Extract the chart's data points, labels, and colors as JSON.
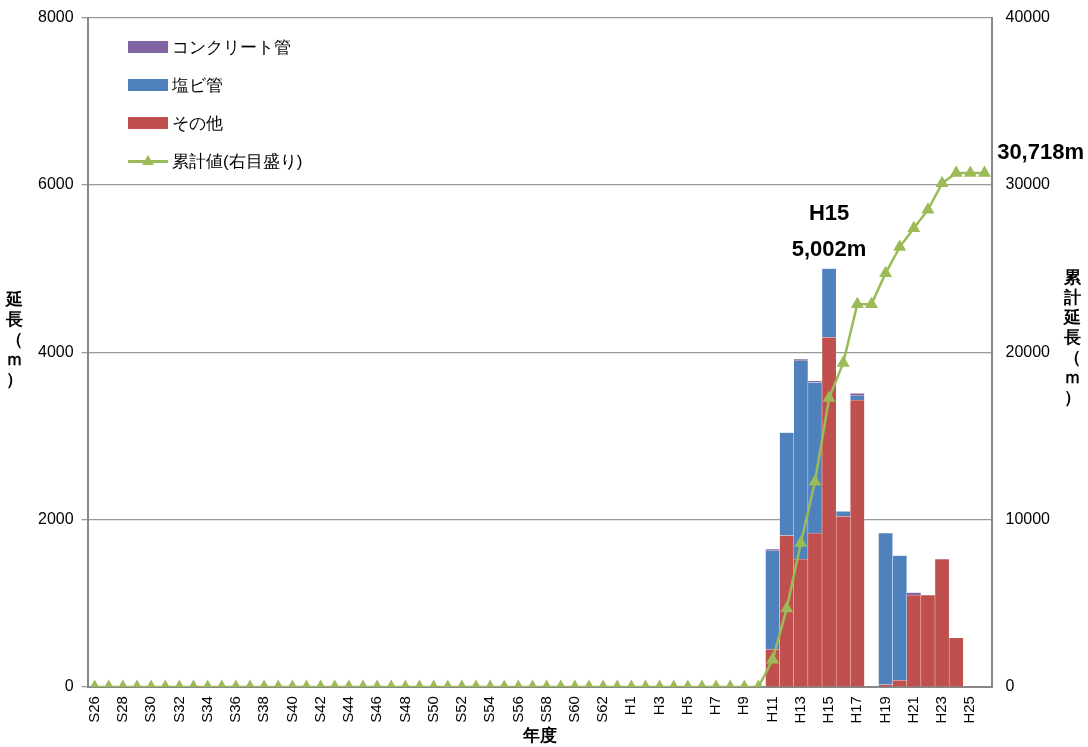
{
  "chart_data": {
    "type": "bar",
    "stacked": true,
    "xlabel": "年度",
    "ylabel": "延長（ｍ）",
    "y2label": "累計延長（ｍ）",
    "categories": [
      "S26",
      null,
      "S28",
      null,
      "S30",
      null,
      "S32",
      null,
      "S34",
      null,
      "S36",
      null,
      "S38",
      null,
      "S40",
      null,
      "S42",
      null,
      "S44",
      null,
      "S46",
      null,
      "S48",
      null,
      "S50",
      null,
      "S52",
      null,
      "S54",
      null,
      "S56",
      null,
      "S58",
      null,
      "S60",
      null,
      "S62",
      null,
      "H1",
      null,
      "H3",
      null,
      "H5",
      null,
      "H7",
      null,
      "H9",
      null,
      "H11",
      null,
      "H13",
      null,
      "H15",
      null,
      "H17",
      null,
      "H19",
      null,
      "H21",
      null,
      "H23",
      null,
      "H25",
      null
    ],
    "series": [
      {
        "name": "その他",
        "color": "#c0504d",
        "values": [
          0,
          0,
          0,
          0,
          0,
          0,
          0,
          0,
          0,
          0,
          0,
          0,
          0,
          0,
          0,
          0,
          0,
          0,
          0,
          0,
          0,
          0,
          0,
          0,
          0,
          0,
          0,
          0,
          0,
          0,
          0,
          0,
          0,
          0,
          0,
          0,
          0,
          0,
          0,
          0,
          0,
          0,
          0,
          0,
          0,
          0,
          0,
          0,
          450,
          1810,
          1530,
          1840,
          4180,
          2040,
          3430,
          0,
          30,
          80,
          1100,
          1100,
          1530,
          590,
          0,
          0
        ]
      },
      {
        "name": "塩ビ管",
        "color": "#4f81bd",
        "values": [
          0,
          0,
          0,
          0,
          0,
          0,
          0,
          0,
          0,
          0,
          0,
          0,
          0,
          0,
          0,
          0,
          0,
          0,
          0,
          0,
          0,
          0,
          0,
          0,
          0,
          0,
          0,
          0,
          0,
          0,
          0,
          0,
          0,
          0,
          0,
          0,
          0,
          0,
          0,
          0,
          0,
          0,
          0,
          0,
          0,
          0,
          0,
          0,
          1180,
          1230,
          2370,
          1800,
          822,
          60,
          50,
          0,
          1810,
          1490,
          0,
          0,
          0,
          0,
          0,
          0
        ]
      },
      {
        "name": "コンクリート管",
        "color": "#8064a2",
        "values": [
          0,
          0,
          0,
          0,
          0,
          0,
          0,
          0,
          0,
          0,
          0,
          0,
          0,
          0,
          0,
          0,
          0,
          0,
          0,
          0,
          0,
          0,
          0,
          0,
          0,
          0,
          0,
          0,
          0,
          0,
          0,
          0,
          0,
          0,
          0,
          0,
          0,
          0,
          0,
          0,
          0,
          0,
          0,
          0,
          0,
          0,
          0,
          0,
          20,
          0,
          20,
          20,
          0,
          0,
          30,
          0,
          0,
          0,
          30,
          0,
          0,
          0,
          0,
          0
        ]
      },
      {
        "name": "累計値(右目盛り)",
        "type": "line",
        "axis": "y2",
        "color": "#9bbb59",
        "marker": "triangle",
        "values": [
          0,
          0,
          0,
          0,
          0,
          0,
          0,
          0,
          0,
          0,
          0,
          0,
          0,
          0,
          0,
          0,
          0,
          0,
          0,
          0,
          0,
          0,
          0,
          0,
          0,
          0,
          0,
          0,
          0,
          0,
          0,
          0,
          0,
          0,
          0,
          0,
          0,
          0,
          0,
          0,
          0,
          0,
          0,
          0,
          0,
          0,
          0,
          0,
          1640,
          4690,
          8610,
          12270,
          17270,
          19370,
          22880,
          22880,
          24720,
          26290,
          27420,
          28520,
          30100,
          30718,
          30718,
          30718
        ]
      }
    ],
    "ylim": [
      0,
      8000
    ],
    "yticks": [
      0,
      2000,
      4000,
      6000,
      8000
    ],
    "y2lim": [
      0,
      40000
    ],
    "y2ticks": [
      0,
      10000,
      20000,
      30000,
      40000
    ],
    "grid": "y",
    "legend": "top left",
    "annotations": [
      {
        "text": "H15\n5,002m",
        "x": "H15",
        "y": 5002
      },
      "30,718m"
    ]
  }
}
